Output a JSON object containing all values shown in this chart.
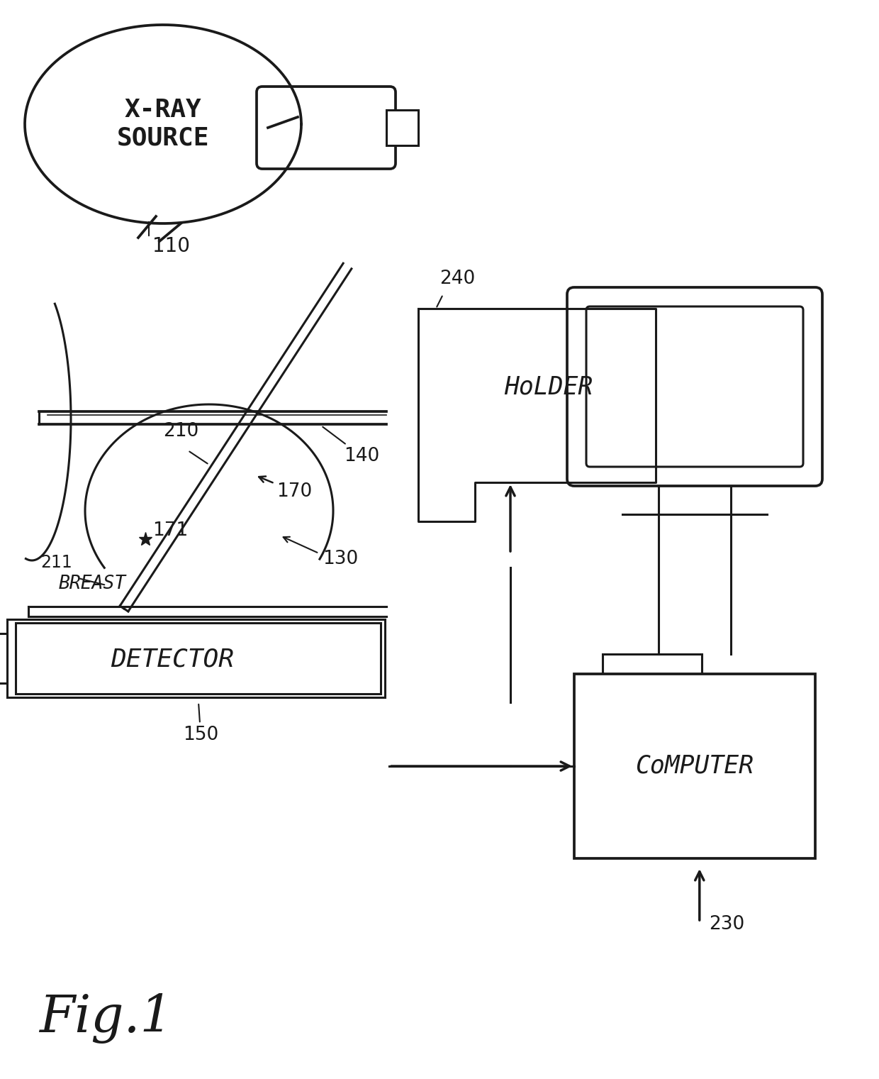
{
  "bg_color": "#ffffff",
  "line_color": "#1a1a1a",
  "fig_label": "Fig.1",
  "lw": 2.2,
  "components": {
    "xray_source_label": "X-RAY\nSOURCE",
    "holder_label": "HoLDER",
    "detector_label": "DETECTOR",
    "computer_label": "CoMPUTER"
  },
  "ref_numbers": {
    "n110": "110",
    "n130": "130",
    "n140": "140",
    "n150": "150",
    "n170": "170",
    "n171": "171",
    "n210": "210",
    "n211": "211",
    "n230": "230",
    "n240": "240",
    "breast": "BREAST"
  }
}
